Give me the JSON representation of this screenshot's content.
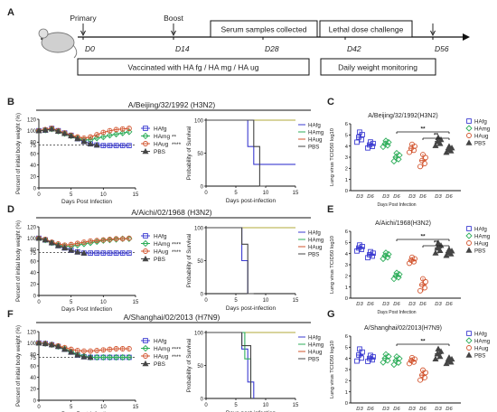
{
  "colors": {
    "fg": "#3b3bd1",
    "mg": "#2fae5b",
    "ug": "#d2542e",
    "pbs": "#444444",
    "survival_top": "#b2a83a"
  },
  "timeline": {
    "panel_label": "A",
    "primary": "Primary",
    "boost": "Boost",
    "serum": "Serum samples collected",
    "lethal": "Lethal dose challenge",
    "days": [
      "D0",
      "D14",
      "D28",
      "D42",
      "D56"
    ],
    "vaccinated": "Vaccinated with HA fg / HA mg / HA ug",
    "daily": "Daily weight monitoring"
  },
  "rows": [
    {
      "row": "row1",
      "strain": "A/Beijing/32/1992 (H3N2)",
      "label_w": "B",
      "label_l": "C",
      "lung_title": "A/Beijing/32/1992(H3N2)",
      "sig": {
        "fg": "",
        "mg": "**",
        "ug": "****"
      },
      "lung_sig": [
        "**",
        "**"
      ]
    },
    {
      "row": "row2",
      "strain": "A/Aichi/02/1968 (H3N2)",
      "label_w": "D",
      "label_l": "E",
      "lung_title": "A/Aichi/1968(H3N2)",
      "sig": {
        "fg": "",
        "mg": "****",
        "ug": "****"
      },
      "lung_sig": [
        "**",
        "**"
      ]
    },
    {
      "row": "row3",
      "strain": "A/Shanghai/02/2013 (H7N9)",
      "label_w": "F",
      "label_l": "G",
      "lung_title": "A/Shanghai/02/2013(H7N9)",
      "sig": {
        "fg": "",
        "mg": "****",
        "ug": "****"
      },
      "lung_sig": [
        "**"
      ]
    }
  ],
  "legend": {
    "fg": "HAfg",
    "mg": "HAmg",
    "ug": "HAug",
    "pbs": "PBS"
  },
  "axes": {
    "weight_ylabel": "Percent of initial body weight (%)",
    "weight_xlabel": "Days Post Infection",
    "survival_ylabel": "Probability of Survival",
    "survival_xlabel": "Days post-infection",
    "lung_ylabel": "Lung virus TCID50 log10",
    "lung_xlabel": "Days Post Infection",
    "weight_yticks": [
      "0",
      "20",
      "40",
      "60",
      "75",
      "80",
      "100",
      "120"
    ],
    "survival_yticks": [
      "0",
      "50",
      "100"
    ],
    "xticks": [
      "0",
      "5",
      "10",
      "15"
    ],
    "lung_yticks": [
      "0",
      "1",
      "2",
      "3",
      "4",
      "5",
      "6"
    ],
    "lung_xticks": [
      "D3",
      "D6",
      "D3",
      "D6",
      "D3",
      "D6",
      "D3",
      "D6"
    ]
  },
  "chart_data": [
    {
      "type": "line",
      "panel": "B",
      "xlim": [
        0,
        15
      ],
      "ylim": [
        0,
        120
      ],
      "x": [
        0,
        1,
        2,
        3,
        4,
        5,
        6,
        7,
        8,
        9,
        10,
        11,
        12,
        13,
        14
      ],
      "series": [
        {
          "name": "HAfg",
          "values": [
            100,
            101,
            104,
            100,
            96,
            92,
            86,
            81,
            77,
            75,
            74,
            74,
            74,
            74,
            74
          ]
        },
        {
          "name": "HAmg",
          "values": [
            100,
            101,
            103,
            99,
            95,
            91,
            87,
            84,
            84,
            87,
            89,
            92,
            94,
            96,
            98
          ]
        },
        {
          "name": "HAug",
          "values": [
            100,
            102,
            104,
            100,
            96,
            92,
            89,
            87,
            89,
            93,
            97,
            100,
            102,
            103,
            104
          ]
        },
        {
          "name": "PBS",
          "values": [
            100,
            101,
            103,
            99,
            95,
            91,
            86,
            81,
            77,
            75,
            null,
            null,
            null,
            null,
            null
          ]
        }
      ]
    },
    {
      "type": "line",
      "panel": "D",
      "xlim": [
        0,
        15
      ],
      "ylim": [
        0,
        120
      ],
      "x": [
        0,
        1,
        2,
        3,
        4,
        5,
        6,
        7,
        8,
        9,
        10,
        11,
        12,
        13,
        14
      ],
      "series": [
        {
          "name": "HAfg",
          "values": [
            100,
            97,
            92,
            87,
            83,
            79,
            76,
            74,
            74,
            74,
            74,
            74,
            74,
            74,
            74
          ]
        },
        {
          "name": "HAmg",
          "values": [
            100,
            97,
            92,
            88,
            86,
            86,
            88,
            90,
            92,
            94,
            96,
            97,
            98,
            99,
            99
          ]
        },
        {
          "name": "HAug",
          "values": [
            100,
            98,
            93,
            90,
            88,
            89,
            91,
            93,
            95,
            96,
            97,
            98,
            99,
            99,
            100
          ]
        },
        {
          "name": "PBS",
          "values": [
            100,
            97,
            92,
            87,
            83,
            79,
            76,
            74,
            null,
            null,
            null,
            null,
            null,
            null,
            null
          ]
        }
      ]
    },
    {
      "type": "line",
      "panel": "F",
      "xlim": [
        0,
        15
      ],
      "ylim": [
        0,
        120
      ],
      "x": [
        0,
        1,
        2,
        3,
        4,
        5,
        6,
        7,
        8,
        9,
        10,
        11,
        12,
        13,
        14
      ],
      "series": [
        {
          "name": "HAfg",
          "values": [
            100,
            99,
            97,
            94,
            89,
            84,
            79,
            76,
            75,
            75,
            75,
            75,
            75,
            75,
            75
          ]
        },
        {
          "name": "HAmg",
          "values": [
            100,
            99,
            97,
            94,
            90,
            85,
            80,
            77,
            75,
            75,
            75,
            75,
            75,
            75,
            75
          ]
        },
        {
          "name": "HAug",
          "values": [
            100,
            99,
            97,
            95,
            92,
            89,
            87,
            86,
            86,
            87,
            88,
            89,
            90,
            90,
            90
          ]
        },
        {
          "name": "PBS",
          "values": [
            100,
            99,
            97,
            94,
            89,
            84,
            79,
            76,
            75,
            null,
            null,
            null,
            null,
            null,
            null
          ]
        }
      ]
    },
    {
      "type": "line",
      "panel": "B-survival",
      "xlim": [
        0,
        15
      ],
      "ylim": [
        0,
        100
      ],
      "series": [
        {
          "name": "HAmg / HAug",
          "points": [
            [
              0,
              100
            ],
            [
              15,
              100
            ]
          ]
        },
        {
          "name": "HAfg",
          "points": [
            [
              0,
              100
            ],
            [
              7,
              100
            ],
            [
              7,
              60
            ],
            [
              8,
              60
            ],
            [
              8,
              33
            ],
            [
              15,
              33
            ]
          ]
        },
        {
          "name": "PBS",
          "points": [
            [
              0,
              100
            ],
            [
              8,
              100
            ],
            [
              8,
              60
            ],
            [
              9,
              60
            ],
            [
              9,
              0
            ],
            [
              10,
              0
            ]
          ]
        }
      ]
    },
    {
      "type": "line",
      "panel": "D-survival",
      "xlim": [
        0,
        15
      ],
      "ylim": [
        0,
        100
      ],
      "series": [
        {
          "name": "HAmg / HAug",
          "points": [
            [
              0,
              100
            ],
            [
              15,
              100
            ]
          ]
        },
        {
          "name": "HAfg",
          "points": [
            [
              0,
              100
            ],
            [
              6,
              100
            ],
            [
              6,
              50
            ],
            [
              7,
              50
            ],
            [
              7,
              0
            ]
          ]
        },
        {
          "name": "PBS",
          "points": [
            [
              0,
              100
            ],
            [
              6,
              100
            ],
            [
              6,
              75
            ],
            [
              7,
              75
            ],
            [
              7,
              0
            ],
            [
              8,
              0
            ]
          ]
        }
      ]
    },
    {
      "type": "line",
      "panel": "F-survival",
      "xlim": [
        0,
        15
      ],
      "ylim": [
        0,
        100
      ],
      "series": [
        {
          "name": "HAug",
          "points": [
            [
              0,
              100
            ],
            [
              15,
              100
            ]
          ]
        },
        {
          "name": "HAfg",
          "points": [
            [
              0,
              100
            ],
            [
              6,
              100
            ],
            [
              6,
              75
            ],
            [
              7,
              75
            ],
            [
              7,
              25
            ],
            [
              8,
              25
            ],
            [
              8,
              0
            ]
          ]
        },
        {
          "name": "HAmg",
          "points": [
            [
              0,
              100
            ],
            [
              6.5,
              100
            ],
            [
              6.5,
              60
            ],
            [
              7.5,
              60
            ],
            [
              7.5,
              0
            ]
          ]
        },
        {
          "name": "PBS",
          "points": [
            [
              0,
              100
            ],
            [
              6,
              100
            ],
            [
              6,
              80
            ],
            [
              7.5,
              80
            ],
            [
              7.5,
              0
            ]
          ]
        }
      ]
    },
    {
      "type": "scatter",
      "panel": "C",
      "ylim": [
        0,
        6
      ],
      "categories": [
        "HAfg D3",
        "HAfg D6",
        "HAmg D3",
        "HAmg D6",
        "HAug D3",
        "HAug D6",
        "PBS D3",
        "PBS D6"
      ],
      "means": [
        4.8,
        4.1,
        4.2,
        3.0,
        3.8,
        2.7,
        4.4,
        3.7
      ],
      "sd": [
        0.5,
        0.3,
        0.3,
        0.4,
        0.4,
        0.6,
        0.4,
        0.3
      ]
    },
    {
      "type": "scatter",
      "panel": "E",
      "ylim": [
        0,
        6
      ],
      "categories": [
        "HAfg D3",
        "HAfg D6",
        "HAmg D3",
        "HAmg D6",
        "HAug D3",
        "HAug D6",
        "PBS D3",
        "PBS D6"
      ],
      "means": [
        4.5,
        3.9,
        3.8,
        2.0,
        3.4,
        1.2,
        4.5,
        4.1
      ],
      "sd": [
        0.3,
        0.3,
        0.3,
        0.3,
        0.3,
        0.6,
        0.5,
        0.3
      ]
    },
    {
      "type": "scatter",
      "panel": "G",
      "ylim": [
        0,
        6
      ],
      "categories": [
        "HAfg D3",
        "HAfg D6",
        "HAmg D3",
        "HAmg D6",
        "HAug D3",
        "HAug D6",
        "PBS D3",
        "PBS D6"
      ],
      "means": [
        4.3,
        4.0,
        4.0,
        3.8,
        3.8,
        2.5,
        4.4,
        3.8
      ],
      "sd": [
        0.6,
        0.3,
        0.4,
        0.4,
        0.3,
        0.5,
        0.5,
        0.3
      ]
    }
  ]
}
